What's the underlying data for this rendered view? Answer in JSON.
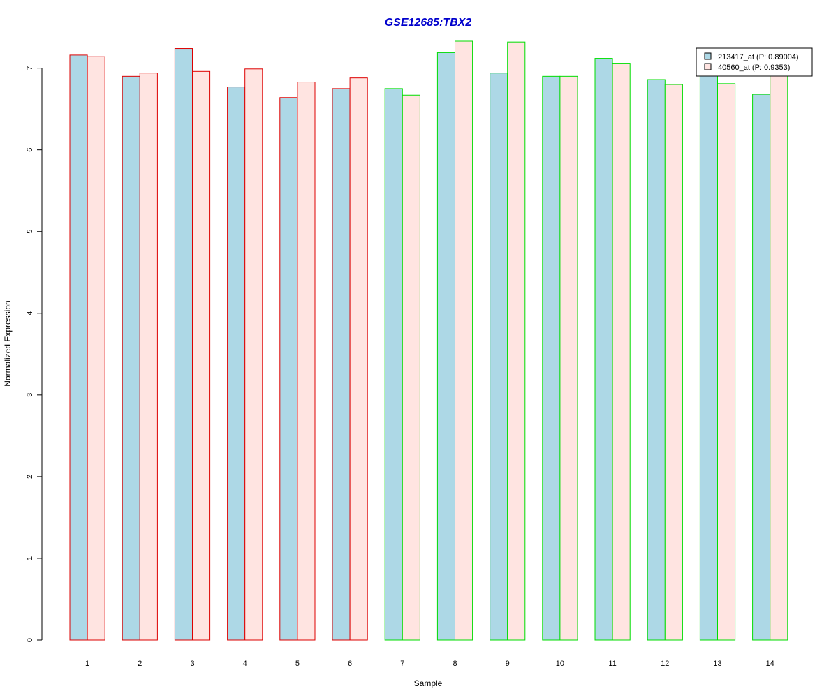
{
  "chart_data": {
    "type": "bar",
    "title": "GSE12685:TBX2",
    "xlabel": "Sample",
    "ylabel": "Normalized Expression",
    "categories": [
      "1",
      "2",
      "3",
      "4",
      "5",
      "6",
      "7",
      "8",
      "9",
      "10",
      "11",
      "12",
      "13",
      "14"
    ],
    "series": [
      {
        "name": "213417_at (P: 0.89004)",
        "fill": "#add8e6",
        "values": [
          7.16,
          6.9,
          7.24,
          6.77,
          6.64,
          6.75,
          6.75,
          7.19,
          6.94,
          6.9,
          7.12,
          6.86,
          6.99,
          6.68
        ]
      },
      {
        "name": "40560_at (P: 0.9353)",
        "fill": "#ffe4e1",
        "values": [
          7.14,
          6.94,
          6.96,
          6.99,
          6.83,
          6.88,
          6.67,
          7.33,
          7.32,
          6.9,
          7.06,
          6.8,
          6.81,
          6.99
        ]
      }
    ],
    "group_outline_colors": [
      "#dd0000",
      "#dd0000",
      "#dd0000",
      "#dd0000",
      "#dd0000",
      "#dd0000",
      "#00dd00",
      "#00dd00",
      "#00dd00",
      "#00dd00",
      "#00dd00",
      "#00dd00",
      "#00dd00",
      "#00dd00"
    ],
    "yticks": [
      0,
      1,
      2,
      3,
      4,
      5,
      6,
      7
    ],
    "ylim": [
      0,
      7.33
    ],
    "legend_position": "top-right",
    "grid": false,
    "colors": {
      "title": "#0000cc",
      "axis": "#000000"
    }
  }
}
